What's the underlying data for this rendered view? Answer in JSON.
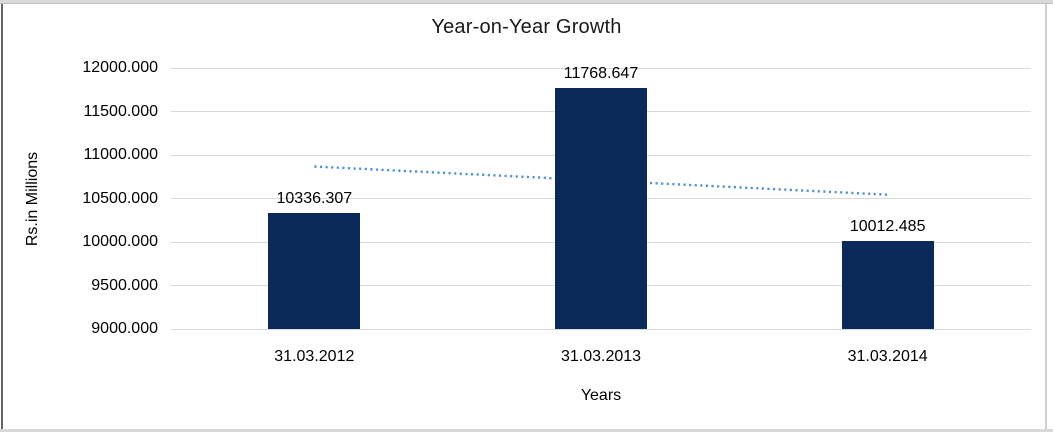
{
  "chart_data": {
    "type": "bar",
    "title": "Year-on-Year Growth",
    "xlabel": "Years",
    "ylabel": "Rs.in Millions",
    "categories": [
      "31.03.2012",
      "31.03.2013",
      "31.03.2014"
    ],
    "values": [
      10336.307,
      11768.647,
      10012.485
    ],
    "data_labels": [
      "10336.307",
      "11768.647",
      "10012.485"
    ],
    "y_ticks": [
      {
        "value": 12000,
        "label": "12000.000"
      },
      {
        "value": 11500,
        "label": "11500.000"
      },
      {
        "value": 11000,
        "label": "11000.000"
      },
      {
        "value": 10500,
        "label": "10500.000"
      },
      {
        "value": 10000,
        "label": "10000.000"
      },
      {
        "value": 9500,
        "label": "9500.000"
      },
      {
        "value": 9000,
        "label": "9000.000"
      }
    ],
    "ylim": [
      9000,
      12000
    ],
    "grid": true,
    "legend": "none",
    "bar_color": "#0c2a59",
    "gridline_color": "#d9d9d9",
    "trendline": {
      "type": "linear",
      "style": "dotted",
      "color": "#5591d6",
      "start_value": 10867.7,
      "end_value": 10543.9
    }
  }
}
